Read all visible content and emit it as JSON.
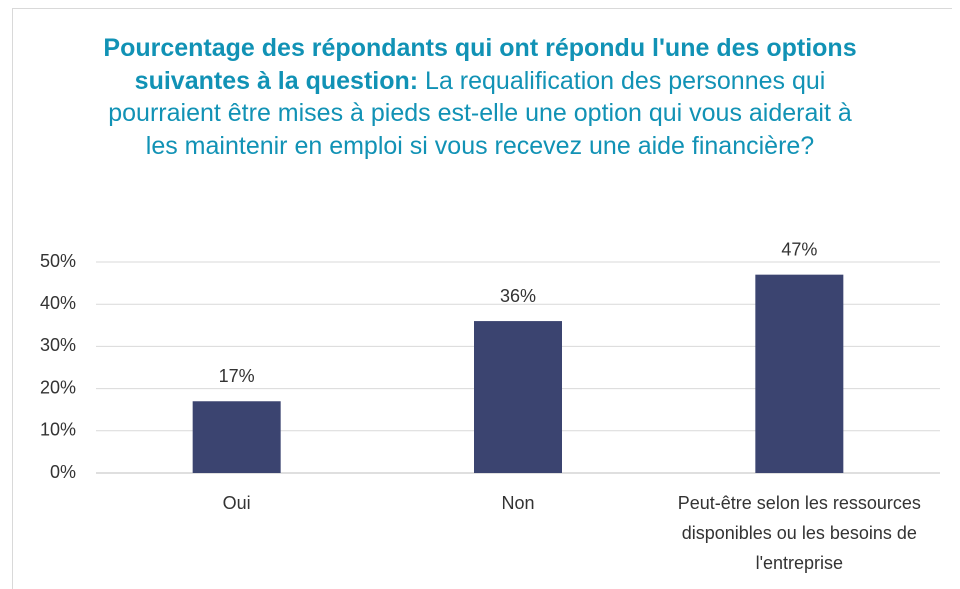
{
  "chart_data": {
    "type": "bar",
    "title_lead": "Pourcentage des répondants qui ont répondu l'une des options suivantes à la question:",
    "title": "La requalification des personnes qui pourraient être mises à pieds est-elle une option qui vous aiderait à les maintenir en emploi si vous recevez une aide financière?",
    "categories": [
      "Oui",
      "Non",
      "Peut-être selon les ressources disponibles ou les besoins de l'entreprise"
    ],
    "values": [
      17,
      36,
      47
    ],
    "value_labels": [
      "17%",
      "36%",
      "47%"
    ],
    "color": "#3b4470",
    "ylim": [
      0,
      50
    ],
    "yticks": [
      {
        "value": 0,
        "label": "0%"
      },
      {
        "value": 10,
        "label": "10%"
      },
      {
        "value": 20,
        "label": "20%"
      },
      {
        "value": 30,
        "label": "30%"
      },
      {
        "value": 40,
        "label": "40%"
      },
      {
        "value": 50,
        "label": "50%"
      }
    ],
    "grid": true
  }
}
